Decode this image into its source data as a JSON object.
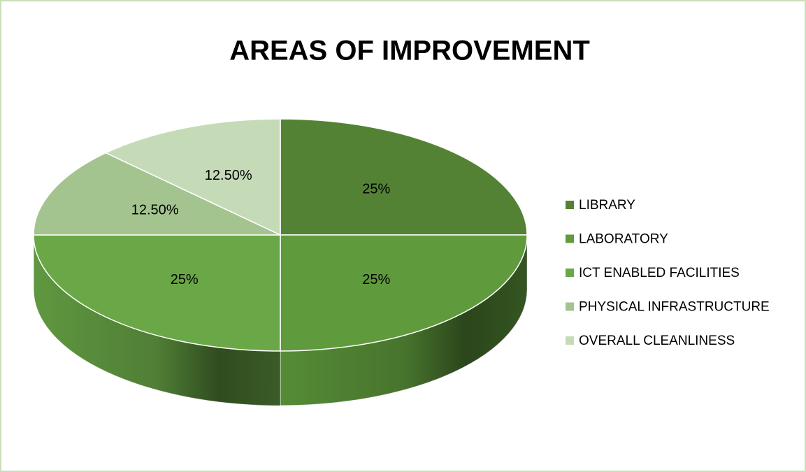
{
  "chart_data": {
    "type": "pie",
    "title": "AREAS OF IMPROVEMENT",
    "categories": [
      "LIBRARY",
      "LABORATORY",
      "ICT ENABLED FACILITIES",
      "PHYSICAL INFRASTRUCTURE",
      "OVERALL CLEANLINESS"
    ],
    "values": [
      25,
      25,
      25,
      12.5,
      12.5
    ],
    "value_labels": [
      "25%",
      "25%",
      "25%",
      "12.50%",
      "12.50%"
    ],
    "colors": [
      "#548235",
      "#5f9b3c",
      "#6aa847",
      "#a3c48f",
      "#c5dbb8"
    ],
    "legend": "right"
  }
}
